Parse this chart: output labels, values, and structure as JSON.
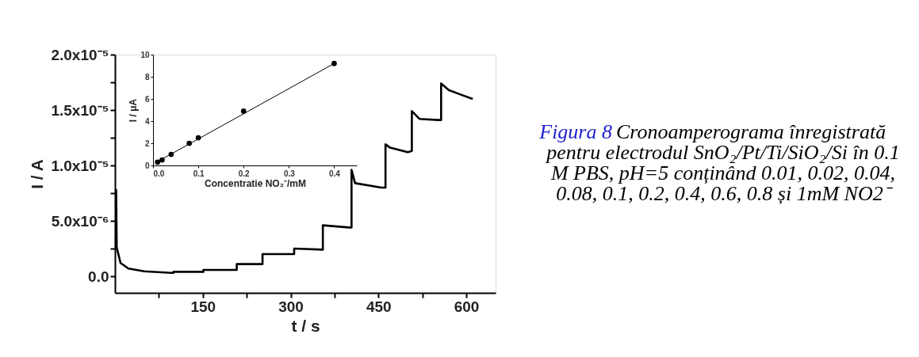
{
  "chart_data": [
    {
      "type": "line",
      "xlabel": "t / s",
      "ylabel": "I / A",
      "color": "#000000",
      "x": [
        1.5,
        2,
        3,
        9.5,
        23,
        50,
        97,
        100,
        100,
        151,
        151,
        208,
        208,
        252,
        252,
        306,
        306,
        355,
        355,
        400,
        404,
        404,
        410,
        455,
        462,
        462,
        470,
        500,
        507,
        507,
        520,
        552,
        557,
        557,
        570,
        590,
        611
      ],
      "values": [
        2.5e-06,
        7.8e-06,
        2.6e-06,
        1.2e-06,
        7e-07,
        4.5e-07,
        3e-07,
        3e-07,
        4e-07,
        4e-07,
        5.7e-07,
        5.7e-07,
        1.1e-06,
        1.1e-06,
        2e-06,
        2e-06,
        2.5e-06,
        2.4e-06,
        4.6e-06,
        4.4e-06,
        4.4e-06,
        9.6e-06,
        8.4e-06,
        8e-06,
        8e-06,
        1.19e-05,
        1.16e-05,
        1.12e-05,
        1.13e-05,
        1.49e-05,
        1.42e-05,
        1.41e-05,
        1.41e-05,
        1.74e-05,
        1.68e-05,
        1.64e-05,
        1.6e-05
      ],
      "xlim": [
        0,
        650
      ],
      "ylim": [
        -1.5e-06,
        2e-05
      ],
      "xticks": [
        {
          "value": 75,
          "label": null
        },
        150,
        {
          "value": 225,
          "label": null
        },
        300,
        {
          "value": 375,
          "label": null
        },
        450,
        {
          "value": 525,
          "label": null
        },
        600
      ],
      "yticks": [
        {
          "value": 0,
          "label": "0.0"
        },
        {
          "value": 2.5e-06,
          "label": null
        },
        {
          "value": 5e-06,
          "label": "5.0x10⁻⁶"
        },
        {
          "value": 7.5e-06,
          "label": null
        },
        {
          "value": 1e-05,
          "label": "1.0x10⁻⁵"
        },
        {
          "value": 1.25e-05,
          "label": null
        },
        {
          "value": 1.5e-05,
          "label": "1.5x10⁻⁵"
        },
        {
          "value": 1.75e-05,
          "label": null
        },
        {
          "value": 2e-05,
          "label": "2.0x10⁻⁵"
        }
      ],
      "grid": false,
      "annotations": [
        "Figura 8",
        "Cronoamperograma înregistrată pentru electrodul SnO₂/Pt/Ti/SiO₂/Si în 0.1 M PBS, pH=5 conținând 0.01, 0.02, 0.04, 0.08, 0.1, 0.2, 0.4, 0.6, 0.8 și 1mM NO2⁻"
      ]
    },
    {
      "type": "scatter",
      "xlabel": "Concentratie NO₂⁻/mM",
      "ylabel": "I / μA",
      "series": [
        {
          "type": "scatter",
          "marker": "circle",
          "color": "#000000",
          "x": [
            0.01,
            0.02,
            0.04,
            0.08,
            0.1,
            0.2,
            0.4
          ],
          "values": [
            0.3,
            0.5,
            1.0,
            2.0,
            2.5,
            4.9,
            9.2
          ]
        },
        {
          "type": "line",
          "color": "#000000",
          "x": [
            0.01,
            0.4
          ],
          "values": [
            0.35,
            9.2
          ]
        }
      ],
      "xlim": [
        0,
        0.45
      ],
      "ylim": [
        0,
        10
      ],
      "xticks": [
        {
          "value": 0,
          "label": "0.0"
        },
        0.1,
        0.2,
        0.3,
        0.4
      ],
      "yticks": [
        0,
        2,
        4,
        6,
        8,
        10
      ],
      "grid": false
    }
  ]
}
